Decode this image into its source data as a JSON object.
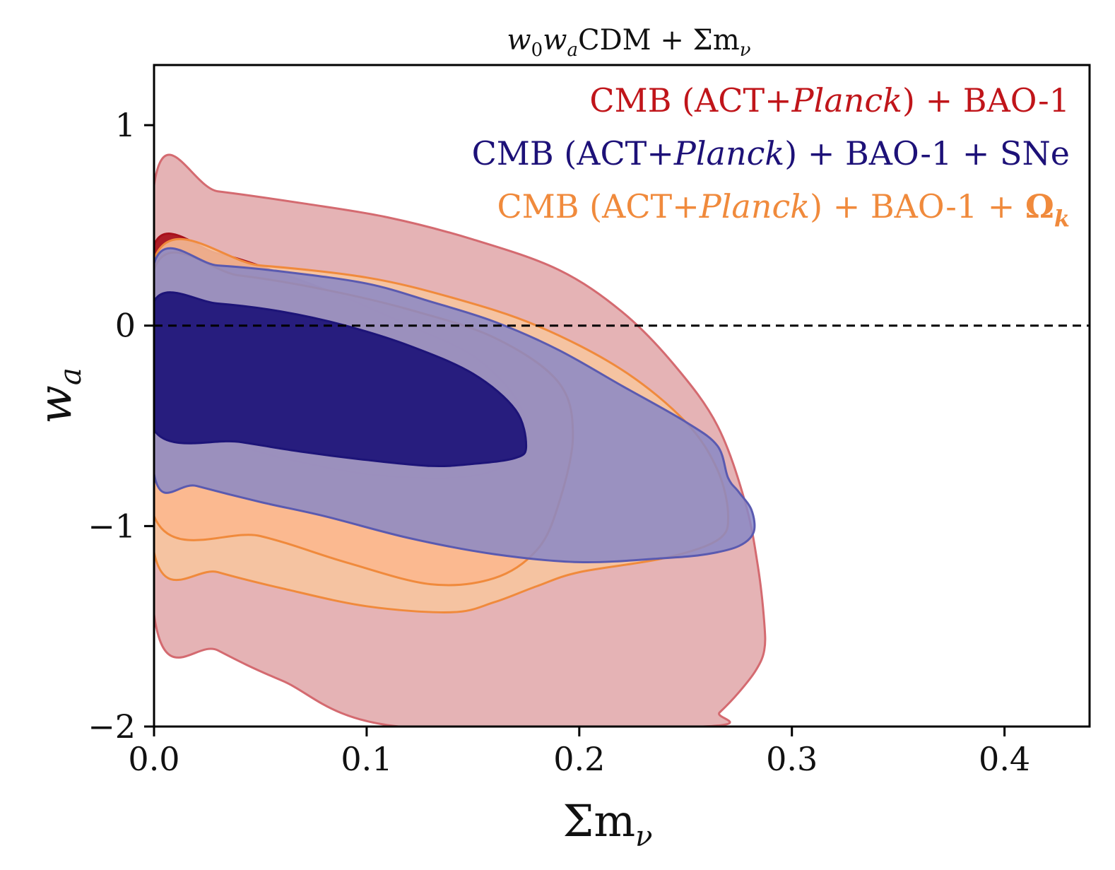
{
  "chart_data": {
    "type": "contour",
    "title": {
      "w": "w",
      "sub0": "0",
      "sub_a": "a",
      "rest": "CDM + Σm",
      "sub_nu": "ν"
    },
    "xlabel": {
      "main": "Σm",
      "sub": "ν"
    },
    "ylabel": {
      "main": "w",
      "sub": "a"
    },
    "xlim": [
      0.0,
      0.44
    ],
    "ylim": [
      -2.0,
      1.3
    ],
    "xticks": [
      {
        "value": 0.0,
        "label": "0.0"
      },
      {
        "value": 0.1,
        "label": "0.1"
      },
      {
        "value": 0.2,
        "label": "0.2"
      },
      {
        "value": 0.3,
        "label": "0.3"
      },
      {
        "value": 0.4,
        "label": "0.4"
      }
    ],
    "yticks": [
      {
        "value": 1,
        "label": "1"
      },
      {
        "value": 0,
        "label": "0"
      },
      {
        "value": -1,
        "label": "−1"
      },
      {
        "value": -2,
        "label": "−2"
      }
    ],
    "reference_line": {
      "y": 0,
      "style": "dashed",
      "color": "#000000"
    },
    "legend": {
      "placement": "top-right",
      "entries": [
        {
          "pre": "CMB (ACT+",
          "italic": "Planck",
          "post": ") + BAO-1",
          "extra": "",
          "extra_sub": "",
          "color": "#c0151a"
        },
        {
          "pre": "CMB (ACT+",
          "italic": "Planck",
          "post": ") + BAO-1 + SNe",
          "extra": "",
          "extra_sub": "",
          "color": "#1d1178"
        },
        {
          "pre": "CMB (ACT+",
          "italic": "Planck",
          "post": ") + BAO-1 + ",
          "extra": "Ω",
          "extra_sub": "k",
          "color": "#f08a3c"
        }
      ]
    },
    "series": [
      {
        "name": "CMB (ACT+Planck) + BAO-1",
        "line_color": "#c0151a",
        "contours": [
          {
            "level": "95%",
            "fill": "#e1a6a8",
            "stroke": "#d46a70",
            "points": [
              [
                0,
                0.7
              ],
              [
                0.03,
                0.67
              ],
              [
                0.07,
                0.61
              ],
              [
                0.11,
                0.54
              ],
              [
                0.15,
                0.43
              ],
              [
                0.19,
                0.28
              ],
              [
                0.22,
                0.07
              ],
              [
                0.245,
                -0.2
              ],
              [
                0.265,
                -0.5
              ],
              [
                0.278,
                -0.88
              ],
              [
                0.284,
                -1.2
              ],
              [
                0.287,
                -1.48
              ],
              [
                0.287,
                -1.62
              ],
              [
                0.283,
                -1.72
              ],
              [
                0.275,
                -1.83
              ],
              [
                0.266,
                -1.93
              ],
              [
                0.258,
                -2.0
              ],
              [
                0.115,
                -2.0
              ],
              [
                0.06,
                -1.77
              ],
              [
                0.03,
                -1.62
              ],
              [
                0,
                -1.44
              ]
            ]
          },
          {
            "level": "68%",
            "fill": "#a8101b",
            "stroke": "#a8101b",
            "points": [
              [
                0,
                0.4
              ],
              [
                0.03,
                0.36
              ],
              [
                0.06,
                0.26
              ],
              [
                0.09,
                0.14
              ],
              [
                0.12,
                0.0
              ],
              [
                0.15,
                -0.15
              ],
              [
                0.17,
                -0.36
              ],
              [
                0.175,
                -0.55
              ],
              [
                0.165,
                -0.7
              ],
              [
                0.14,
                -0.76
              ],
              [
                0.1,
                -0.74
              ],
              [
                0.06,
                -0.66
              ],
              [
                0.03,
                -0.57
              ],
              [
                0,
                -0.5
              ]
            ]
          }
        ]
      },
      {
        "name": "CMB (ACT+Planck) + BAO-1 + Ωk",
        "line_color": "#f08a3c",
        "contours": [
          {
            "level": "95%",
            "fill": "#f8c69d",
            "stroke": "#f08a3c",
            "points": [
              [
                0,
                0.33
              ],
              [
                0.05,
                0.3
              ],
              [
                0.1,
                0.24
              ],
              [
                0.14,
                0.14
              ],
              [
                0.18,
                0.0
              ],
              [
                0.22,
                -0.22
              ],
              [
                0.25,
                -0.48
              ],
              [
                0.265,
                -0.72
              ],
              [
                0.27,
                -0.95
              ],
              [
                0.265,
                -1.07
              ],
              [
                0.24,
                -1.16
              ],
              [
                0.2,
                -1.23
              ],
              [
                0.18,
                -1.3
              ],
              [
                0.16,
                -1.38
              ],
              [
                0.14,
                -1.43
              ],
              [
                0.1,
                -1.4
              ],
              [
                0.06,
                -1.31
              ],
              [
                0.03,
                -1.23
              ],
              [
                0,
                -1.13
              ]
            ]
          },
          {
            "level": "68%",
            "fill": "#fbb88e",
            "stroke": "#f08a3c",
            "points": [
              [
                0,
                0.28
              ],
              [
                0.04,
                0.25
              ],
              [
                0.08,
                0.18
              ],
              [
                0.12,
                0.08
              ],
              [
                0.16,
                -0.06
              ],
              [
                0.19,
                -0.28
              ],
              [
                0.197,
                -0.55
              ],
              [
                0.19,
                -0.9
              ],
              [
                0.18,
                -1.12
              ],
              [
                0.16,
                -1.26
              ],
              [
                0.13,
                -1.29
              ],
              [
                0.09,
                -1.18
              ],
              [
                0.05,
                -1.05
              ],
              [
                0,
                -0.95
              ]
            ]
          }
        ]
      },
      {
        "name": "CMB (ACT+Planck) + BAO-1 + SNe",
        "line_color": "#1d1178",
        "contours": [
          {
            "level": "95%",
            "fill": "#8a88c6",
            "stroke": "#5a5ab0",
            "points": [
              [
                0,
                0.31
              ],
              [
                0.03,
                0.3
              ],
              [
                0.06,
                0.27
              ],
              [
                0.1,
                0.21
              ],
              [
                0.13,
                0.12
              ],
              [
                0.16,
                0.02
              ],
              [
                0.19,
                -0.12
              ],
              [
                0.22,
                -0.3
              ],
              [
                0.25,
                -0.48
              ],
              [
                0.265,
                -0.6
              ],
              [
                0.27,
                -0.76
              ],
              [
                0.275,
                -0.83
              ],
              [
                0.281,
                -0.92
              ],
              [
                0.282,
                -1.03
              ],
              [
                0.275,
                -1.1
              ],
              [
                0.26,
                -1.14
              ],
              [
                0.24,
                -1.16
              ],
              [
                0.2,
                -1.18
              ],
              [
                0.16,
                -1.14
              ],
              [
                0.12,
                -1.06
              ],
              [
                0.08,
                -0.95
              ],
              [
                0.05,
                -0.88
              ],
              [
                0.02,
                -0.8
              ],
              [
                0,
                -0.74
              ]
            ]
          },
          {
            "level": "68%",
            "fill": "#1d1478",
            "stroke": "#1d1478",
            "points": [
              [
                0,
                0.12
              ],
              [
                0.03,
                0.11
              ],
              [
                0.06,
                0.07
              ],
              [
                0.09,
                0.0
              ],
              [
                0.12,
                -0.1
              ],
              [
                0.15,
                -0.24
              ],
              [
                0.17,
                -0.42
              ],
              [
                0.175,
                -0.6
              ],
              [
                0.17,
                -0.66
              ],
              [
                0.15,
                -0.69
              ],
              [
                0.13,
                -0.7
              ],
              [
                0.1,
                -0.67
              ],
              [
                0.07,
                -0.63
              ],
              [
                0.04,
                -0.58
              ],
              [
                0,
                -0.52
              ]
            ]
          }
        ]
      }
    ]
  }
}
